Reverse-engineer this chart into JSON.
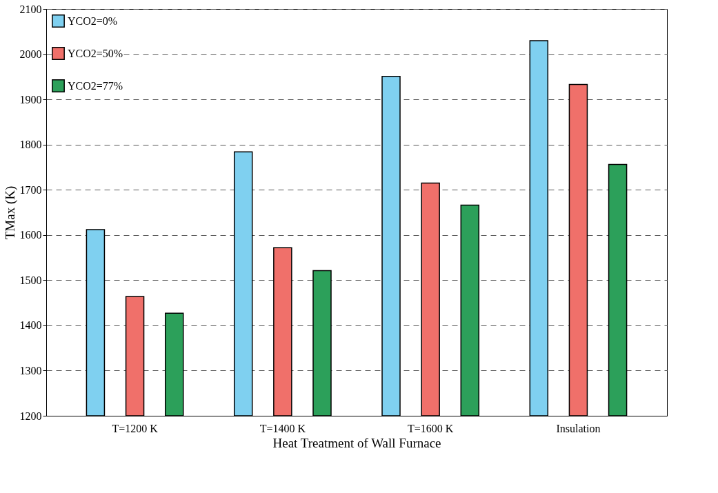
{
  "chart_data": {
    "type": "bar",
    "xlabel": "Heat Treatment of Wall Furnace",
    "ylabel": "TMax (K)",
    "categories": [
      "T=1200 K",
      "T=1400 K",
      "T=1600 K",
      "Insulation"
    ],
    "series": [
      {
        "name": "YCO2=0%",
        "color": "#7fd0f0",
        "values": [
          1612,
          1784,
          1951,
          2030
        ]
      },
      {
        "name": "YCO2=50%",
        "color": "#f0706a",
        "values": [
          1464,
          1572,
          1715,
          1933
        ]
      },
      {
        "name": "YCO2=77%",
        "color": "#2ca05a",
        "values": [
          1427,
          1521,
          1666,
          1756
        ]
      }
    ],
    "ylim": [
      1200,
      2100
    ],
    "yticks": [
      1200,
      1300,
      1400,
      1500,
      1600,
      1700,
      1800,
      1900,
      2000,
      2100
    ],
    "grid": "y",
    "legend": "top left"
  }
}
